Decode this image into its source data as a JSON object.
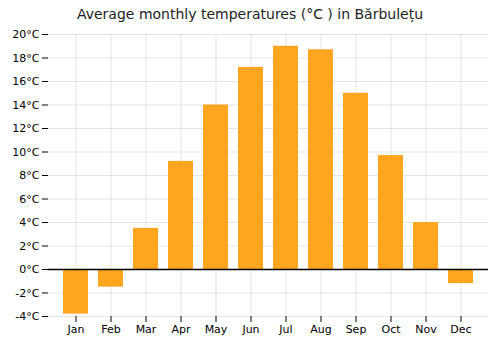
{
  "chart_data": {
    "type": "bar",
    "title": "Average monthly temperatures (°C ) in Bărbulețu",
    "categories": [
      "Jan",
      "Feb",
      "Mar",
      "Apr",
      "May",
      "Jun",
      "Jul",
      "Aug",
      "Sep",
      "Oct",
      "Nov",
      "Dec"
    ],
    "values": [
      -3.8,
      -1.5,
      3.5,
      9.2,
      14.0,
      17.2,
      19.0,
      18.7,
      15.0,
      9.7,
      4.0,
      -1.2
    ],
    "color": "#FFA520",
    "ylim": [
      -4,
      20
    ],
    "yticks": [
      {
        "value": -4,
        "label": "-4°C"
      },
      {
        "value": -2,
        "label": "-2°C"
      },
      {
        "value": 0,
        "label": "0°C"
      },
      {
        "value": 2,
        "label": "2°C"
      },
      {
        "value": 4,
        "label": "4°C"
      },
      {
        "value": 6,
        "label": "6°C"
      },
      {
        "value": 8,
        "label": "8°C"
      },
      {
        "value": 10,
        "label": "10°C"
      },
      {
        "value": 12,
        "label": "12°C"
      },
      {
        "value": 14,
        "label": "14°C"
      },
      {
        "value": 16,
        "label": "16°C"
      },
      {
        "value": 18,
        "label": "18°C"
      },
      {
        "value": 20,
        "label": "20°C"
      }
    ],
    "grid": true
  }
}
